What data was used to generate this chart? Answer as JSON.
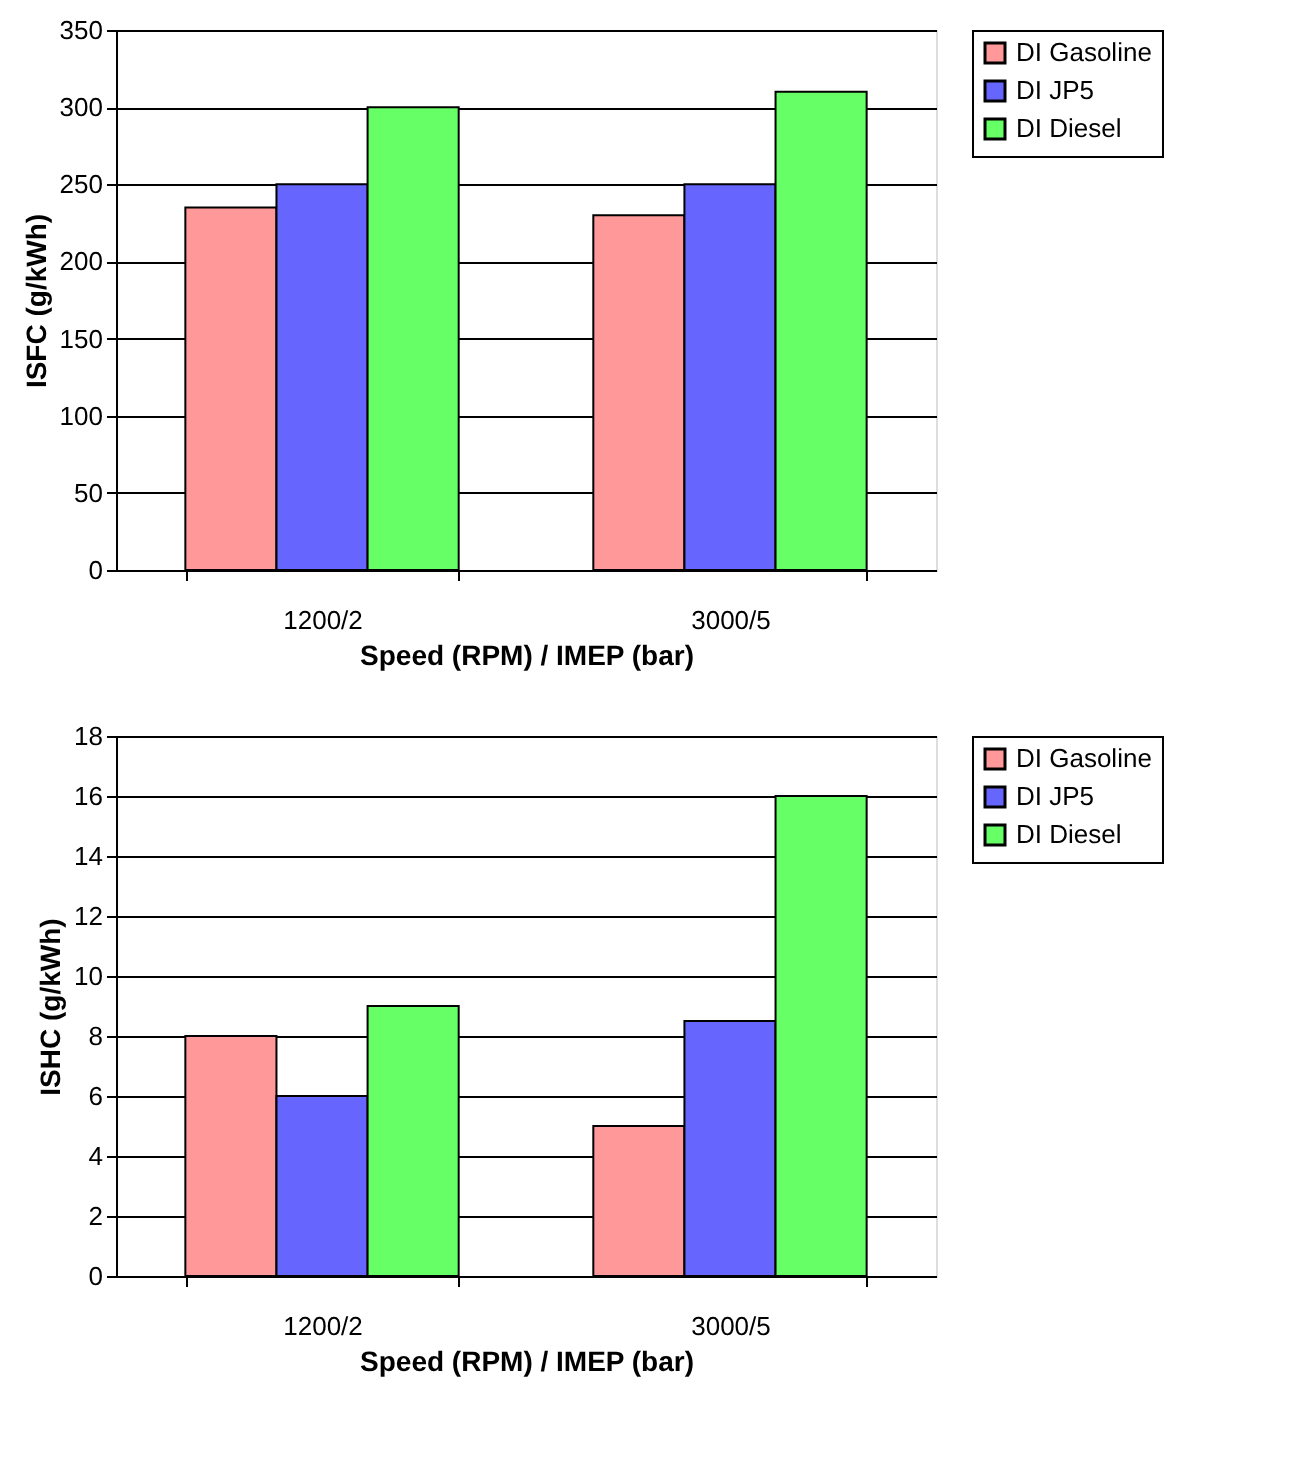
{
  "chart_data": [
    {
      "type": "bar",
      "ylabel": "ISFC (g/kWh)",
      "xlabel": "Speed (RPM) / IMEP (bar)",
      "categories": [
        "1200/2",
        "3000/5"
      ],
      "ylim": [
        0,
        350
      ],
      "yticks": [
        0,
        50,
        100,
        150,
        200,
        250,
        300,
        350
      ],
      "grid": "y",
      "legend": "right",
      "series": [
        {
          "name": "DI Gasoline",
          "color": "#ff9999",
          "values": [
            235,
            230
          ]
        },
        {
          "name": "DI JP5",
          "color": "#6666ff",
          "values": [
            250,
            250
          ]
        },
        {
          "name": "DI Diesel",
          "color": "#66ff66",
          "values": [
            300,
            310
          ]
        }
      ]
    },
    {
      "type": "bar",
      "ylabel": "ISHC (g/kWh)",
      "xlabel": "Speed (RPM) / IMEP (bar)",
      "categories": [
        "1200/2",
        "3000/5"
      ],
      "ylim": [
        0,
        18
      ],
      "yticks": [
        0,
        2,
        4,
        6,
        8,
        10,
        12,
        14,
        16,
        18
      ],
      "grid": "y",
      "legend": "right",
      "series": [
        {
          "name": "DI Gasoline",
          "color": "#ff9999",
          "values": [
            8,
            5
          ]
        },
        {
          "name": "DI JP5",
          "color": "#6666ff",
          "values": [
            6,
            8.5
          ]
        },
        {
          "name": "DI Diesel",
          "color": "#66ff66",
          "values": [
            9,
            16
          ]
        }
      ]
    }
  ]
}
